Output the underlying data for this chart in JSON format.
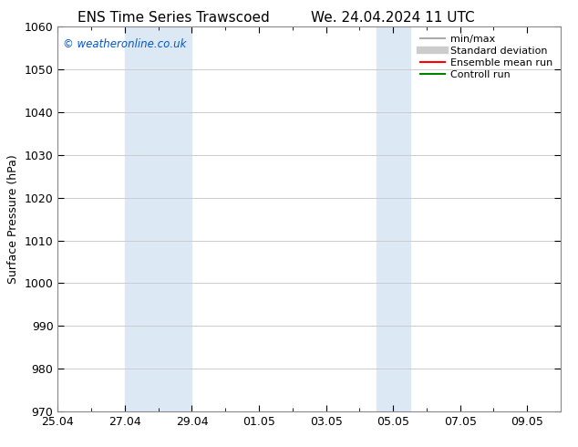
{
  "title_left": "ENS Time Series Trawscoed",
  "title_right": "We. 24.04.2024 11 UTC",
  "ylabel": "Surface Pressure (hPa)",
  "ylim": [
    970,
    1060
  ],
  "yticks": [
    970,
    980,
    990,
    1000,
    1010,
    1020,
    1030,
    1040,
    1050,
    1060
  ],
  "xtick_labels": [
    "25.04",
    "27.04",
    "29.04",
    "01.05",
    "03.05",
    "05.05",
    "07.05",
    "09.05"
  ],
  "xtick_positions": [
    0,
    2,
    4,
    6,
    8,
    10,
    12,
    14
  ],
  "xlim": [
    0,
    15
  ],
  "shaded_regions": [
    {
      "start": 2,
      "end": 4,
      "color": "#dce9f5"
    },
    {
      "start": 9.5,
      "end": 10.5,
      "color": "#dce9f5"
    }
  ],
  "watermark": "© weatheronline.co.uk",
  "legend_entries": [
    {
      "label": "min/max",
      "color": "#aaaaaa",
      "lw": 1.5,
      "ls": "-"
    },
    {
      "label": "Standard deviation",
      "color": "#cccccc",
      "lw": 6,
      "ls": "-"
    },
    {
      "label": "Ensemble mean run",
      "color": "red",
      "lw": 1.5,
      "ls": "-"
    },
    {
      "label": "Controll run",
      "color": "green",
      "lw": 1.5,
      "ls": "-"
    }
  ],
  "bg_color": "#ffffff",
  "grid_color": "#cccccc",
  "spine_color": "#888888"
}
